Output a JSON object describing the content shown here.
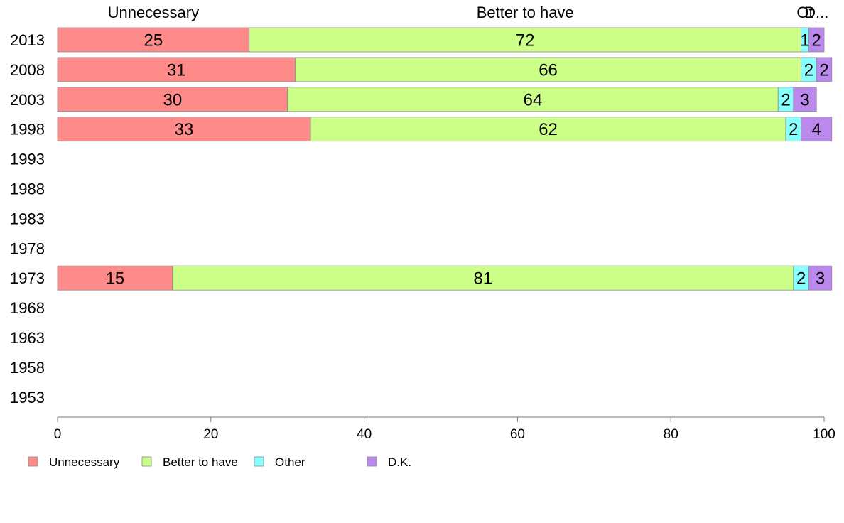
{
  "chart_data": {
    "type": "bar",
    "orientation": "horizontal",
    "stacked": true,
    "categories": [
      "2013",
      "2008",
      "2003",
      "1998",
      "1993",
      "1988",
      "1983",
      "1978",
      "1973",
      "1968",
      "1963",
      "1958",
      "1953"
    ],
    "series": [
      {
        "name": "Unnecessary",
        "color": "#ff8a8a",
        "values": [
          25,
          31,
          30,
          33,
          null,
          null,
          null,
          null,
          15,
          null,
          null,
          null,
          null
        ]
      },
      {
        "name": "Better to have",
        "color": "#ccff88",
        "values": [
          72,
          66,
          64,
          62,
          null,
          null,
          null,
          null,
          81,
          null,
          null,
          null,
          null
        ]
      },
      {
        "name": "Other",
        "color": "#88ffff",
        "values": [
          1,
          2,
          2,
          2,
          null,
          null,
          null,
          null,
          2,
          null,
          null,
          null,
          null
        ]
      },
      {
        "name": "D.K.",
        "color": "#bb88ee",
        "values": [
          2,
          2,
          3,
          4,
          null,
          null,
          null,
          null,
          3,
          null,
          null,
          null,
          null
        ]
      }
    ],
    "top_labels": [
      "Unnecessary",
      "Better to have",
      "Ot",
      "D..."
    ],
    "xlim": [
      0,
      100
    ],
    "xticks": [
      0,
      20,
      40,
      60,
      80,
      100
    ],
    "grid": false,
    "legend_position": "bottom"
  }
}
